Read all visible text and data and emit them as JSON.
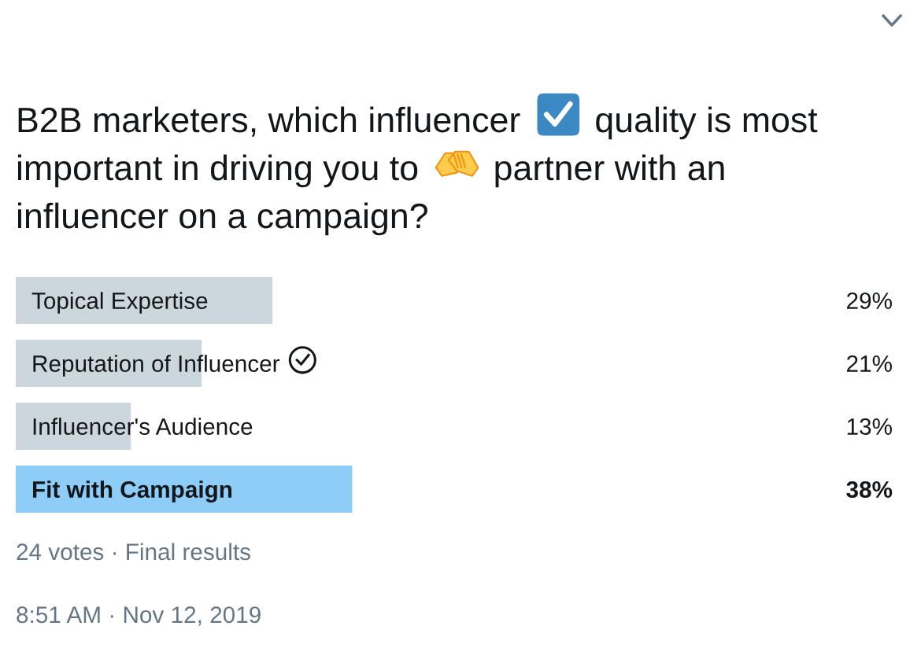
{
  "chart_data": {
    "type": "bar",
    "orientation": "horizontal",
    "title": "B2B marketers, which influencer quality is most important in driving you to partner with an influencer on a campaign?",
    "categories": [
      "Topical Expertise",
      "Reputation of Influencer",
      "Influencer's Audience",
      "Fit with Campaign"
    ],
    "values": [
      29,
      21,
      13,
      38
    ],
    "colors": [
      "#ccd6dd",
      "#ccd6dd",
      "#ccd6dd",
      "#8ecdf8"
    ],
    "value_labels": [
      "29%",
      "21%",
      "13%",
      "38%"
    ],
    "tick_labels": false,
    "annotations": [
      "24 votes · Final results",
      "8:51 AM · Nov 12, 2019"
    ]
  }
}
